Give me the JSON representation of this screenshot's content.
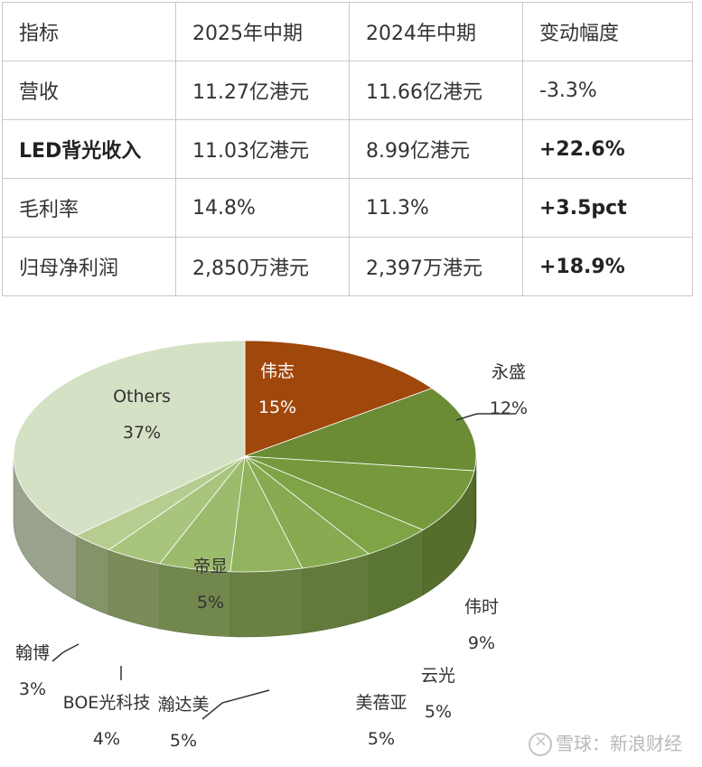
{
  "table": {
    "header": [
      "指标",
      "2025年中期",
      "2024年中期",
      "变动幅度"
    ],
    "rows": [
      {
        "metric": "营收",
        "h2025": "11.27亿港元",
        "h2024": "11.66亿港元",
        "change": "-3.3%",
        "bold_metric": false,
        "bold_change": false
      },
      {
        "metric": "LED背光收入",
        "h2025": "11.03亿港元",
        "h2024": "8.99亿港元",
        "change": "+22.6%",
        "bold_metric": true,
        "bold_change": true
      },
      {
        "metric": "毛利率",
        "h2025": "14.8%",
        "h2024": "11.3%",
        "change": "+3.5pct",
        "bold_metric": false,
        "bold_change": true
      },
      {
        "metric": "归母净利润",
        "h2025": "2,850万港元",
        "h2024": "2,397万港元",
        "change": "+18.9%",
        "bold_metric": false,
        "bold_change": true
      }
    ]
  },
  "chart_data": {
    "type": "pie",
    "title": "",
    "slices": [
      {
        "label": "伟志",
        "value": 15,
        "pct": "15%",
        "color": "#a0470c"
      },
      {
        "label": "永盛",
        "value": 12,
        "pct": "12%",
        "color": "#6b8c35"
      },
      {
        "label": "伟时",
        "value": 9,
        "pct": "9%",
        "color": "#76993d"
      },
      {
        "label": "云光",
        "value": 5,
        "pct": "5%",
        "color": "#7ea446"
      },
      {
        "label": "美蓓亚",
        "value": 5,
        "pct": "5%",
        "color": "#88ab52"
      },
      {
        "label": "瀚达美",
        "value": 5,
        "pct": "5%",
        "color": "#92b35d"
      },
      {
        "label": "帝显",
        "value": 5,
        "pct": "5%",
        "color": "#9dbb6c"
      },
      {
        "label": "BOE光科技",
        "value": 4,
        "pct": "4%",
        "color": "#a9c47c"
      },
      {
        "label": "翰博",
        "value": 3,
        "pct": "3%",
        "color": "#b6cd91"
      },
      {
        "label": "Others",
        "value": 37,
        "pct": "37%",
        "color": "#d5e1c4"
      }
    ]
  },
  "watermark": {
    "text": "雪球：新浪财经"
  }
}
